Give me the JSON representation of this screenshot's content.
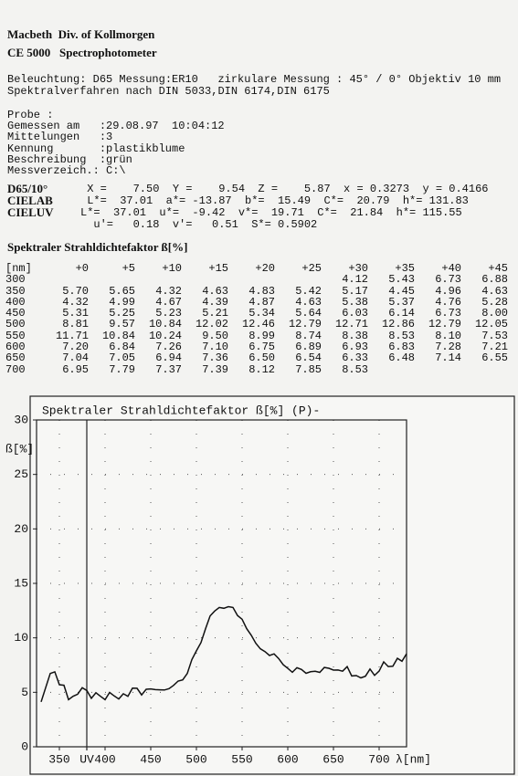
{
  "header": {
    "lines": [
      "Macbeth  Div. of Kollmorgen",
      "CE 5000   Spectrophotometer"
    ]
  },
  "settings": [
    "Beleuchtung: D65 Messung:ER10   zirkulare Messung : 45° / 0° Objektiv 10 mm",
    "Spektralverfahren nach DIN 5033,DIN 6174,DIN 6175"
  ],
  "probe": {
    "title": "Probe :",
    "fields": [
      {
        "key": "Gemessen am   :",
        "value": "29.08.97  10:04:12"
      },
      {
        "key": "Mittelungen   :",
        "value": "3"
      },
      {
        "key": "Kennung       :",
        "value": "plastikblume"
      },
      {
        "key": "Beschreibung  :",
        "value": "grün"
      },
      {
        "key": "Messverzeich.:",
        "value": "C:\\"
      }
    ]
  },
  "colorimetry": [
    {
      "label": "D65/10°",
      "text": " X =    7.50  Y =    9.54  Z =    5.87  x = 0.3273  y = 0.4166"
    },
    {
      "label": "CIELAB",
      "text": " L*=  37.01  a*= -13.87  b*=  15.49  C*=  20.79  h*= 131.83"
    },
    {
      "label": "CIELUV",
      "text": "L*=  37.01  u*=  -9.42  v*=  19.71  C*=  21.84  h*= 115.55"
    },
    {
      "text": "  u'=   0.18  v'=   0.51  S*= 0.5902"
    }
  ],
  "table": {
    "title": "Spektraler Strahldichtefaktor ß[%]",
    "columns": [
      "[nm]",
      "+0",
      "+5",
      "+10",
      "+15",
      "+20",
      "+25",
      "+30",
      "+35",
      "+40",
      "+45"
    ],
    "rows": [
      {
        "nm": "300",
        "values": [
          null,
          null,
          null,
          null,
          null,
          null,
          "4.12",
          "5.43",
          "6.73",
          "6.88"
        ]
      },
      {
        "nm": "350",
        "values": [
          "5.70",
          "5.65",
          "4.32",
          "4.63",
          "4.83",
          "5.42",
          "5.17",
          "4.45",
          "4.96",
          "4.63"
        ]
      },
      {
        "nm": "400",
        "values": [
          "4.32",
          "4.99",
          "4.67",
          "4.39",
          "4.87",
          "4.63",
          "5.38",
          "5.37",
          "4.76",
          "5.28"
        ]
      },
      {
        "nm": "450",
        "values": [
          "5.31",
          "5.25",
          "5.23",
          "5.21",
          "5.34",
          "5.64",
          "6.03",
          "6.14",
          "6.73",
          "8.00"
        ]
      },
      {
        "nm": "500",
        "values": [
          "8.81",
          "9.57",
          "10.84",
          "12.02",
          "12.46",
          "12.79",
          "12.71",
          "12.86",
          "12.79",
          "12.05"
        ]
      },
      {
        "nm": "550",
        "values": [
          "11.71",
          "10.84",
          "10.24",
          "9.50",
          "8.99",
          "8.74",
          "8.38",
          "8.53",
          "8.10",
          "7.53"
        ]
      },
      {
        "nm": "600",
        "values": [
          "7.20",
          "6.84",
          "7.26",
          "7.10",
          "6.75",
          "6.89",
          "6.93",
          "6.83",
          "7.28",
          "7.21"
        ]
      },
      {
        "nm": "650",
        "values": [
          "7.04",
          "7.05",
          "6.94",
          "7.36",
          "6.50",
          "6.54",
          "6.33",
          "6.48",
          "7.14",
          "6.55"
        ]
      },
      {
        "nm": "700",
        "values": [
          "6.95",
          "7.79",
          "7.37",
          "7.39",
          "8.12",
          "7.85",
          "8.53",
          null,
          null,
          null
        ]
      }
    ]
  },
  "chart_data": {
    "type": "line",
    "title": "Spektraler Strahldichtefaktor ß[%]   (P)-",
    "ylabel": "ß[%]",
    "xlabel": "λ[nm]",
    "color": "#111111",
    "xlim": [
      325,
      730
    ],
    "ylim": [
      0,
      30
    ],
    "xticks": [
      350,
      {
        "value": 380,
        "label": "UV"
      },
      400,
      450,
      500,
      550,
      600,
      650,
      700
    ],
    "yticks": [
      0,
      5,
      10,
      15,
      20,
      25,
      30
    ],
    "grid": true
  }
}
